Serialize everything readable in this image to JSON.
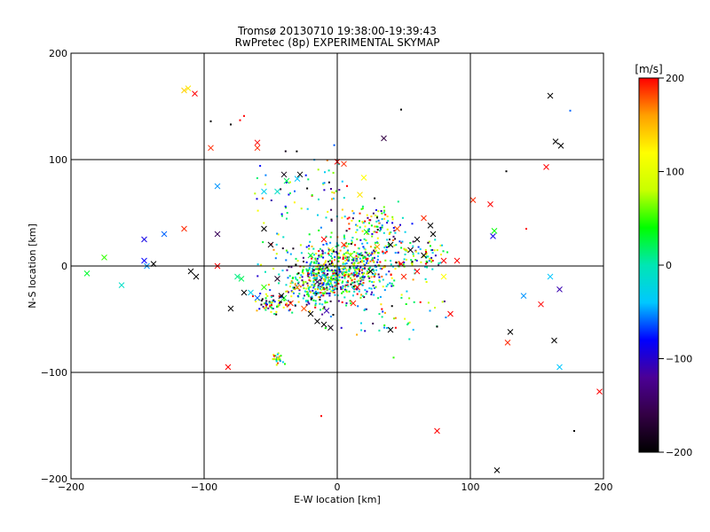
{
  "chart_data": {
    "type": "scatter",
    "title": "Tromsø 20130710 19:38:00-19:39:43",
    "subtitle": "RwPretec (8p) EXPERIMENTAL SKYMAP",
    "xlabel": "E-W location [km]",
    "ylabel": "N-S location [km]",
    "xlim": [
      -200,
      200
    ],
    "ylim": [
      -200,
      200
    ],
    "x_ticks": [
      -200,
      -100,
      0,
      100,
      200
    ],
    "y_ticks": [
      -200,
      -100,
      0,
      100,
      200
    ],
    "x_tick_labels": [
      "−200",
      "−100",
      "0",
      "100",
      "200"
    ],
    "y_tick_labels": [
      "−200",
      "−100",
      "0",
      "100",
      "200"
    ],
    "grid": true,
    "colorbar": {
      "label": "[m/s]",
      "range": [
        -200,
        200
      ],
      "ticks": [
        200,
        100,
        0,
        -100,
        -200
      ],
      "tick_labels": [
        "200",
        "100",
        "0",
        "−100",
        "−200"
      ],
      "colors": [
        "#000000",
        "#330044",
        "#4b0096",
        "#0000ff",
        "#00c8ff",
        "#00e6b4",
        "#00ff00",
        "#c8ff00",
        "#ffff00",
        "#ffa000",
        "#ff0000"
      ]
    },
    "points_x": [
      {
        "x": -112,
        "y": 167,
        "v": 130
      },
      {
        "x": -115,
        "y": 165,
        "v": 140
      },
      {
        "x": -107,
        "y": 162,
        "v": 200
      },
      {
        "x": -95,
        "y": 111,
        "v": 190
      },
      {
        "x": -60,
        "y": 116,
        "v": 200
      },
      {
        "x": -60,
        "y": 111,
        "v": 190
      },
      {
        "x": -40,
        "y": 86,
        "v": -190
      },
      {
        "x": -28,
        "y": 86,
        "v": -200
      },
      {
        "x": -45,
        "y": 70,
        "v": -10
      },
      {
        "x": -30,
        "y": 82,
        "v": -40
      },
      {
        "x": -38,
        "y": 80,
        "v": 20
      },
      {
        "x": -90,
        "y": 75,
        "v": -50
      },
      {
        "x": -55,
        "y": 70,
        "v": -30
      },
      {
        "x": -130,
        "y": 30,
        "v": -60
      },
      {
        "x": -115,
        "y": 35,
        "v": 190
      },
      {
        "x": -145,
        "y": 25,
        "v": -90
      },
      {
        "x": -175,
        "y": 8,
        "v": 50
      },
      {
        "x": -188,
        "y": -7,
        "v": 30
      },
      {
        "x": -145,
        "y": 5,
        "v": -80
      },
      {
        "x": -143,
        "y": 0,
        "v": -50
      },
      {
        "x": -138,
        "y": 2,
        "v": -200
      },
      {
        "x": -162,
        "y": -18,
        "v": -10
      },
      {
        "x": -110,
        "y": -5,
        "v": -200
      },
      {
        "x": -106,
        "y": -10,
        "v": -200
      },
      {
        "x": -90,
        "y": 30,
        "v": -150
      },
      {
        "x": -90,
        "y": 0,
        "v": 200
      },
      {
        "x": -72,
        "y": -12,
        "v": 20
      },
      {
        "x": -75,
        "y": -10,
        "v": 10
      },
      {
        "x": -80,
        "y": -40,
        "v": -200
      },
      {
        "x": -82,
        "y": -95,
        "v": 200
      },
      {
        "x": -55,
        "y": 35,
        "v": -200
      },
      {
        "x": -50,
        "y": 20,
        "v": -190
      },
      {
        "x": -45,
        "y": -12,
        "v": -180
      },
      {
        "x": -40,
        "y": -30,
        "v": 30
      },
      {
        "x": -35,
        "y": -35,
        "v": 190
      },
      {
        "x": -30,
        "y": -20,
        "v": 170
      },
      {
        "x": -25,
        "y": -40,
        "v": 180
      },
      {
        "x": -20,
        "y": -45,
        "v": -200
      },
      {
        "x": -15,
        "y": -52,
        "v": -200
      },
      {
        "x": -10,
        "y": -55,
        "v": -200
      },
      {
        "x": -5,
        "y": -58,
        "v": -190
      },
      {
        "x": 0,
        "y": 98,
        "v": 200
      },
      {
        "x": 5,
        "y": 96,
        "v": 190
      },
      {
        "x": 20,
        "y": 83,
        "v": 120
      },
      {
        "x": 35,
        "y": 120,
        "v": -160
      },
      {
        "x": 17,
        "y": 67,
        "v": 130
      },
      {
        "x": 22,
        "y": 32,
        "v": 40
      },
      {
        "x": 30,
        "y": 18,
        "v": 160
      },
      {
        "x": 40,
        "y": 20,
        "v": -200
      },
      {
        "x": 55,
        "y": 15,
        "v": -190
      },
      {
        "x": 60,
        "y": 25,
        "v": -200
      },
      {
        "x": 70,
        "y": 38,
        "v": -200
      },
      {
        "x": 65,
        "y": 45,
        "v": 190
      },
      {
        "x": 72,
        "y": 30,
        "v": -200
      },
      {
        "x": 80,
        "y": 5,
        "v": 200
      },
      {
        "x": 90,
        "y": 5,
        "v": 200
      },
      {
        "x": 85,
        "y": -45,
        "v": 200
      },
      {
        "x": 80,
        "y": -10,
        "v": 120
      },
      {
        "x": 75,
        "y": -155,
        "v": 200
      },
      {
        "x": 40,
        "y": -60,
        "v": -200
      },
      {
        "x": 102,
        "y": 62,
        "v": 190
      },
      {
        "x": 115,
        "y": 58,
        "v": 200
      },
      {
        "x": 117,
        "y": 28,
        "v": -90
      },
      {
        "x": 118,
        "y": 33,
        "v": 40
      },
      {
        "x": 120,
        "y": -192,
        "v": -200
      },
      {
        "x": 128,
        "y": -72,
        "v": 190
      },
      {
        "x": 130,
        "y": -62,
        "v": -200
      },
      {
        "x": 140,
        "y": -28,
        "v": -50
      },
      {
        "x": 153,
        "y": -36,
        "v": 200
      },
      {
        "x": 157,
        "y": 93,
        "v": 200
      },
      {
        "x": 160,
        "y": 160,
        "v": -200
      },
      {
        "x": 164,
        "y": 117,
        "v": -200
      },
      {
        "x": 168,
        "y": 113,
        "v": -200
      },
      {
        "x": 160,
        "y": -10,
        "v": -40
      },
      {
        "x": 167,
        "y": -22,
        "v": -110
      },
      {
        "x": 163,
        "y": -70,
        "v": -200
      },
      {
        "x": 167,
        "y": -95,
        "v": -40
      },
      {
        "x": 197,
        "y": -118,
        "v": 200
      },
      {
        "x": -10,
        "y": 25,
        "v": 200
      },
      {
        "x": 5,
        "y": 20,
        "v": 190
      },
      {
        "x": 10,
        "y": 10,
        "v": 60
      },
      {
        "x": -5,
        "y": 15,
        "v": 90
      },
      {
        "x": 15,
        "y": -20,
        "v": 200
      },
      {
        "x": 25,
        "y": -5,
        "v": -200
      },
      {
        "x": -20,
        "y": 10,
        "v": 30
      },
      {
        "x": -65,
        "y": -25,
        "v": -30
      },
      {
        "x": -60,
        "y": -30,
        "v": -60
      },
      {
        "x": -70,
        "y": -25,
        "v": -200
      },
      {
        "x": -55,
        "y": -20,
        "v": 50
      },
      {
        "x": -42,
        "y": -28,
        "v": -200
      },
      {
        "x": 45,
        "y": 35,
        "v": 180
      },
      {
        "x": 48,
        "y": 2,
        "v": 200
      },
      {
        "x": 60,
        "y": -5,
        "v": 200
      },
      {
        "x": -15,
        "y": -15,
        "v": -150
      },
      {
        "x": -8,
        "y": -42,
        "v": -110
      },
      {
        "x": 12,
        "y": -35,
        "v": 190
      },
      {
        "x": 50,
        "y": -10,
        "v": 190
      },
      {
        "x": 65,
        "y": 10,
        "v": -200
      }
    ],
    "cluster_dots": [
      {
        "cx": 0,
        "cy": -5,
        "rx": 35,
        "ry": 25,
        "n": 500
      },
      {
        "cx": 15,
        "cy": 5,
        "rx": 40,
        "ry": 30,
        "n": 200
      },
      {
        "cx": -15,
        "cy": -20,
        "rx": 25,
        "ry": 20,
        "n": 150
      },
      {
        "cx": 30,
        "cy": 40,
        "rx": 20,
        "ry": 15,
        "n": 80
      },
      {
        "cx": -50,
        "cy": -35,
        "rx": 15,
        "ry": 10,
        "n": 70
      },
      {
        "cx": -45,
        "cy": -87,
        "rx": 5,
        "ry": 4,
        "n": 25
      },
      {
        "cx": 60,
        "cy": 10,
        "rx": 25,
        "ry": 15,
        "n": 70
      },
      {
        "cx": -40,
        "cy": 60,
        "rx": 30,
        "ry": 40,
        "n": 40
      },
      {
        "cx": 0,
        "cy": 70,
        "rx": 25,
        "ry": 40,
        "n": 40
      },
      {
        "cx": 40,
        "cy": -40,
        "rx": 50,
        "ry": 30,
        "n": 60
      }
    ],
    "isolated_dots": [
      {
        "x": -95,
        "y": 136,
        "v": -200
      },
      {
        "x": -80,
        "y": 133,
        "v": -200
      },
      {
        "x": -70,
        "y": 141,
        "v": 200
      },
      {
        "x": -73,
        "y": 137,
        "v": 200
      },
      {
        "x": 48,
        "y": 147,
        "v": -200
      },
      {
        "x": 175,
        "y": 146,
        "v": -60
      },
      {
        "x": 127,
        "y": 89,
        "v": -200
      },
      {
        "x": 142,
        "y": 35,
        "v": 200
      },
      {
        "x": 178,
        "y": -155,
        "v": -200
      },
      {
        "x": -12,
        "y": -141,
        "v": 200
      },
      {
        "x": 75,
        "y": -57,
        "v": -200
      }
    ]
  }
}
